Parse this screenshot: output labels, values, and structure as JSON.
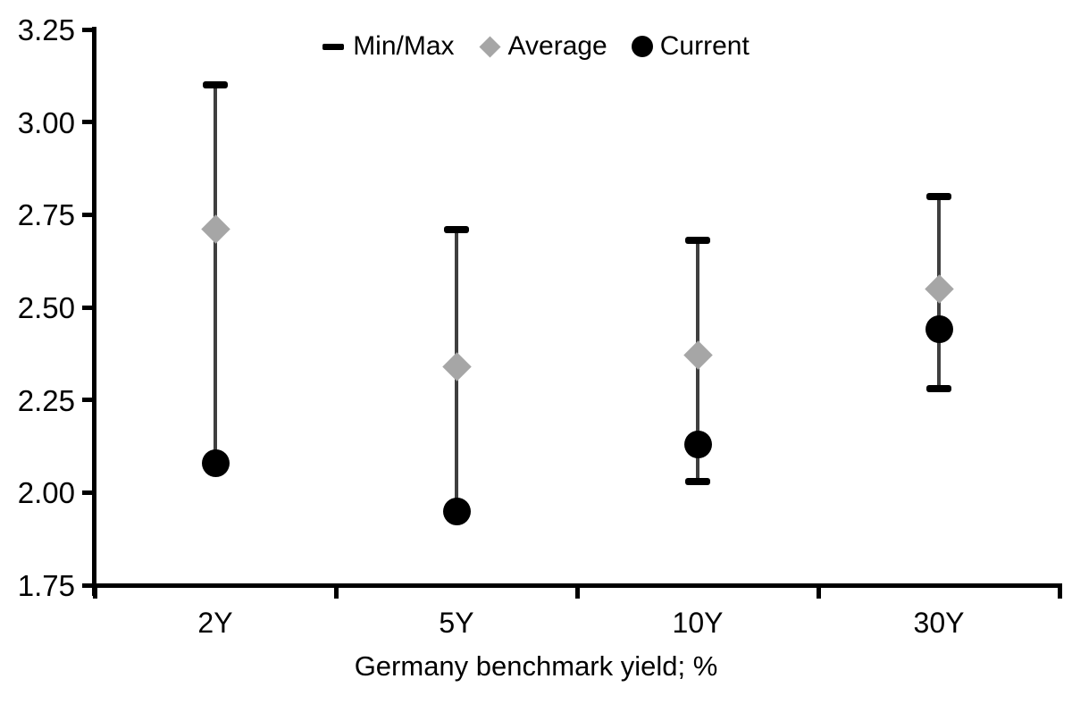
{
  "chart_data": {
    "type": "scatter",
    "subtype": "min-max-range-dot",
    "title": "",
    "xlabel": "Germany benchmark yield; %",
    "ylabel": "",
    "categories": [
      "2Y",
      "5Y",
      "10Y",
      "30Y"
    ],
    "series": [
      {
        "name": "Min/Max",
        "role": "range",
        "key": "dash",
        "min": [
          2.08,
          1.95,
          2.03,
          2.28
        ],
        "max": [
          3.1,
          2.71,
          2.68,
          2.8
        ]
      },
      {
        "name": "Average",
        "role": "points",
        "key": "diamond",
        "marker": "diamond",
        "values": [
          2.71,
          2.34,
          2.37,
          2.55
        ]
      },
      {
        "name": "Current",
        "role": "points",
        "key": "circle",
        "marker": "circle",
        "values": [
          2.08,
          1.95,
          2.13,
          2.44
        ]
      }
    ],
    "ylim": [
      1.75,
      3.25
    ],
    "ytick_step": 0.25,
    "ytick_labels": [
      "3.25",
      "3.00",
      "2.75",
      "2.50",
      "2.25",
      "2.00",
      "1.75"
    ],
    "grid": false,
    "legend_position": "top-center",
    "colors": {
      "background": "#FFFFFF",
      "axis": "#000000",
      "text": "#000000",
      "range_line": "#3F3F3F",
      "range_cap": "#000000",
      "average_marker": "#A6A6A6",
      "current_marker": "#000000"
    }
  }
}
